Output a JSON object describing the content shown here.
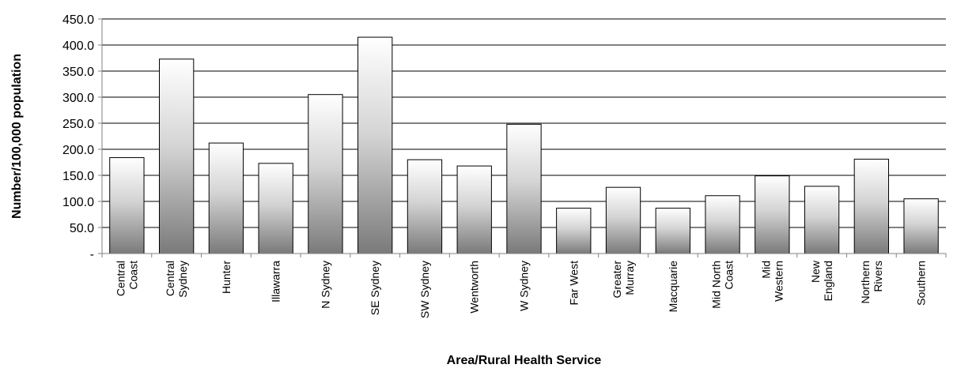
{
  "chart_data": {
    "type": "bar",
    "title": "",
    "xlabel": "Area/Rural Health Service",
    "ylabel": "Number/100,000 population",
    "ylim": [
      0,
      450
    ],
    "yticks": [
      0,
      50,
      100,
      150,
      200,
      250,
      300,
      350,
      400,
      450
    ],
    "ytick_labels": [
      "-",
      "50.0",
      "100.0",
      "150.0",
      "200.0",
      "250.0",
      "300.0",
      "350.0",
      "400.0",
      "450.0"
    ],
    "grid": true,
    "categories": [
      {
        "label": "Central Coast",
        "lines": [
          "Central",
          "Coast"
        ]
      },
      {
        "label": "Central Sydney",
        "lines": [
          "Central",
          "Sydney"
        ]
      },
      {
        "label": "Hunter",
        "lines": [
          "Hunter"
        ]
      },
      {
        "label": "Illawarra",
        "lines": [
          "Illawarra"
        ]
      },
      {
        "label": "N Sydney",
        "lines": [
          "N Sydney"
        ]
      },
      {
        "label": "SE Sydney",
        "lines": [
          "SE Sydney"
        ]
      },
      {
        "label": "SW Sydney",
        "lines": [
          "SW Sydney"
        ]
      },
      {
        "label": "Wentworth",
        "lines": [
          "Wentworth"
        ]
      },
      {
        "label": "W Sydney",
        "lines": [
          "W Sydney"
        ]
      },
      {
        "label": "Far West",
        "lines": [
          "Far West"
        ]
      },
      {
        "label": "Greater Murray",
        "lines": [
          "Greater",
          "Murray"
        ]
      },
      {
        "label": "Macquarie",
        "lines": [
          "Macquarie"
        ]
      },
      {
        "label": "Mid North Coast",
        "lines": [
          "Mid North",
          "Coast"
        ]
      },
      {
        "label": "Mid Western",
        "lines": [
          "Mid",
          "Western"
        ]
      },
      {
        "label": "New England",
        "lines": [
          "New",
          "England"
        ]
      },
      {
        "label": "Northern Rivers",
        "lines": [
          "Northern",
          "Rivers"
        ]
      },
      {
        "label": "Southern",
        "lines": [
          "Southern"
        ]
      }
    ],
    "values": [
      184,
      373,
      212,
      173,
      305,
      415,
      180,
      168,
      248,
      87,
      127,
      87,
      111,
      149,
      129,
      181,
      105
    ],
    "colors": {
      "bar_light": "#ffffff",
      "bar_mid": "#d4d4d4",
      "bar_dark": "#7a7a7a",
      "bar_stroke": "#000000",
      "grid": "#000000",
      "axis": "#808080"
    }
  }
}
